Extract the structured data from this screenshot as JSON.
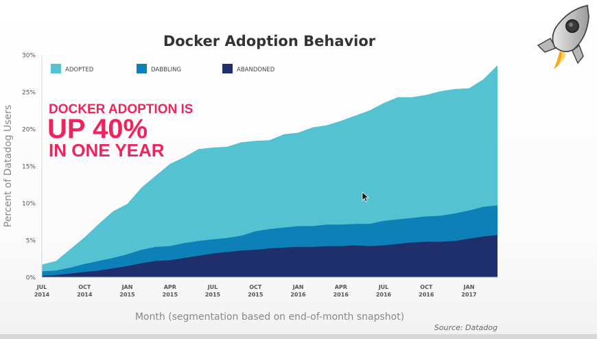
{
  "chart_data": {
    "type": "area",
    "stacked": true,
    "title": "Docker Adoption Behavior",
    "ylabel": "Percent of Datadog Users",
    "xlabel": "Month (segmentation based on end-of-month snapshot)",
    "source": "Source: Datadog",
    "ylim": [
      0,
      30
    ],
    "y_ticks": [
      "0%",
      "5%",
      "10%",
      "15%",
      "20%",
      "25%",
      "30%"
    ],
    "x_ticks": [
      {
        "month": "JUL",
        "year": "2014"
      },
      {
        "month": "OCT",
        "year": "2014"
      },
      {
        "month": "JAN",
        "year": "2015"
      },
      {
        "month": "APR",
        "year": "2015"
      },
      {
        "month": "JUL",
        "year": "2015"
      },
      {
        "month": "OCT",
        "year": "2015"
      },
      {
        "month": "JAN",
        "year": "2016"
      },
      {
        "month": "APR",
        "year": "2016"
      },
      {
        "month": "JUL",
        "year": "2016"
      },
      {
        "month": "OCT",
        "year": "2016"
      },
      {
        "month": "JAN",
        "year": "2017"
      }
    ],
    "x": [
      "2014-07",
      "2014-08",
      "2014-09",
      "2014-10",
      "2014-11",
      "2014-12",
      "2015-01",
      "2015-02",
      "2015-03",
      "2015-04",
      "2015-05",
      "2015-06",
      "2015-07",
      "2015-08",
      "2015-09",
      "2015-10",
      "2015-11",
      "2015-12",
      "2016-01",
      "2016-02",
      "2016-03",
      "2016-04",
      "2016-05",
      "2016-06",
      "2016-07",
      "2016-08",
      "2016-09",
      "2016-10",
      "2016-11",
      "2016-12",
      "2017-01",
      "2017-02",
      "2017-03"
    ],
    "series": [
      {
        "name": "ABANDONED",
        "color": "#1f2f6b",
        "values": [
          0.2,
          0.3,
          0.5,
          0.7,
          0.9,
          1.2,
          1.5,
          1.9,
          2.2,
          2.3,
          2.6,
          2.9,
          3.2,
          3.4,
          3.6,
          3.7,
          3.9,
          4.0,
          4.1,
          4.1,
          4.2,
          4.2,
          4.3,
          4.2,
          4.3,
          4.5,
          4.7,
          4.8,
          4.8,
          4.9,
          5.2,
          5.5,
          5.7
        ]
      },
      {
        "name": "DABBLING",
        "color": "#0e80b8",
        "values": [
          0.6,
          0.6,
          0.8,
          1.1,
          1.3,
          1.4,
          1.6,
          1.8,
          1.9,
          1.9,
          2.0,
          2.0,
          1.9,
          1.9,
          2.0,
          2.5,
          2.6,
          2.7,
          2.8,
          2.8,
          2.9,
          2.9,
          2.9,
          3.0,
          3.3,
          3.3,
          3.3,
          3.4,
          3.5,
          3.7,
          3.8,
          4.0,
          4.0
        ]
      },
      {
        "name": "ADOPTED",
        "color": "#55c2d2",
        "values": [
          0.9,
          1.3,
          2.5,
          3.6,
          5.0,
          6.3,
          6.8,
          8.4,
          9.6,
          11.1,
          11.6,
          12.4,
          12.4,
          12.3,
          12.6,
          12.2,
          12.0,
          12.6,
          12.6,
          13.3,
          13.4,
          14.0,
          14.6,
          15.3,
          15.9,
          16.5,
          16.3,
          16.4,
          16.8,
          16.8,
          16.5,
          17.2,
          18.9
        ]
      }
    ],
    "legend": {
      "placement": "top-left",
      "order": [
        "ADOPTED",
        "DABBLING",
        "ABANDONED"
      ]
    },
    "annotation": {
      "lines": [
        "DOCKER ADOPTION IS",
        "UP 40%",
        "IN ONE YEAR"
      ],
      "color": "#f0245c"
    },
    "grid": false
  }
}
